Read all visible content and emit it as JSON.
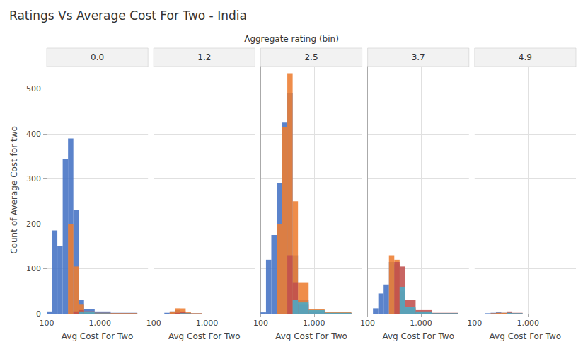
{
  "title": "Ratings Vs Average Cost For Two - India",
  "subtitle": "Aggregate rating (bin)",
  "chart_data": [
    {
      "type": "histogram",
      "title": "0.0",
      "xlabel": "Avg Cost For Two",
      "ylabel": "Count of Average Cost for two",
      "bins": [
        100,
        125.89254117941675,
        158.48931924611142,
        199.52623149688807,
        251.18864315095823,
        316.22776601683796,
        398.1071705534973,
        501.18723362727246,
        794.3282347242822,
        1584.893192461114,
        5011.872336272725
      ],
      "series": [
        {
          "color": "#4472C4",
          "values": [
            5,
            185,
            150,
            345,
            390,
            230,
            30,
            10,
            5,
            2
          ]
        },
        {
          "color": "#ED7D31",
          "values": [
            0,
            0,
            0,
            0,
            200,
            105,
            20,
            5,
            2,
            1
          ]
        },
        {
          "color": "#C0504D",
          "values": [
            0,
            0,
            0,
            0,
            0,
            5,
            8,
            2,
            1,
            0
          ]
        },
        {
          "color": "#4BACC6",
          "values": [
            0,
            0,
            0,
            0,
            0,
            0,
            5,
            3,
            1,
            0
          ]
        }
      ],
      "log": "x",
      "xlim": [
        100,
        7943.282347242822
      ],
      "xticks": [
        100,
        {
          "value": 1000,
          "label": "1,000"
        }
      ],
      "ylim": [
        0,
        550
      ],
      "yticks": [
        0,
        100,
        200,
        300,
        400,
        500
      ],
      "grid": true
    },
    {
      "type": "histogram",
      "title": "1.2",
      "xlabel": "Avg Cost For Two",
      "bins": [
        100,
        125.89254117941675,
        158.48931924611142,
        199.52623149688807,
        251.18864315095823,
        316.22776601683796,
        398.1071705534973,
        501.18723362727246,
        794.3282347242822,
        1584.893192461114,
        5011.872336272725
      ],
      "series": [
        {
          "color": "#4472C4",
          "values": [
            0,
            0,
            2,
            5,
            8,
            5,
            2,
            1,
            0,
            0
          ]
        },
        {
          "color": "#ED7D31",
          "values": [
            0,
            0,
            0,
            5,
            12,
            12,
            3,
            1,
            0,
            0
          ]
        },
        {
          "color": "#C0504D",
          "values": [
            0,
            0,
            0,
            0,
            2,
            3,
            1,
            0,
            0,
            0
          ]
        },
        {
          "color": "#4BACC6",
          "values": [
            0,
            0,
            0,
            0,
            0,
            1,
            1,
            0,
            0,
            0
          ]
        }
      ],
      "log": "x",
      "xlim": [
        100,
        7943.282347242822
      ],
      "xticks": [
        100,
        {
          "value": 1000,
          "label": "1,000"
        }
      ],
      "ylim": [
        0,
        550
      ],
      "yticks": [
        0,
        100,
        200,
        300,
        400,
        500
      ],
      "grid": true,
      "tick_labels": "x"
    },
    {
      "type": "histogram",
      "title": "2.5",
      "xlabel": "Avg Cost For Two",
      "bins": [
        100,
        125.89254117941675,
        158.48931924611142,
        199.52623149688807,
        251.18864315095823,
        316.22776601683796,
        398.1071705534973,
        501.18723362727246,
        794.3282347242822,
        1584.893192461114,
        5011.872336272725
      ],
      "series": [
        {
          "color": "#4472C4",
          "values": [
            3,
            120,
            175,
            290,
            425,
            490,
            130,
            30,
            8,
            2
          ]
        },
        {
          "color": "#ED7D31",
          "values": [
            0,
            0,
            0,
            200,
            415,
            535,
            250,
            70,
            10,
            3
          ]
        },
        {
          "color": "#C0504D",
          "values": [
            0,
            0,
            0,
            0,
            0,
            130,
            70,
            20,
            5,
            1
          ]
        },
        {
          "color": "#4BACC6",
          "values": [
            0,
            0,
            0,
            0,
            0,
            0,
            30,
            25,
            8,
            2
          ]
        }
      ],
      "log": "x",
      "xlim": [
        100,
        7943.282347242822
      ],
      "xticks": [
        100,
        {
          "value": 1000,
          "label": "1,000"
        }
      ],
      "ylim": [
        0,
        550
      ],
      "yticks": [
        0,
        100,
        200,
        300,
        400,
        500
      ],
      "grid": true,
      "tick_labels": "x"
    },
    {
      "type": "histogram",
      "title": "3.7",
      "xlabel": "Avg Cost For Two",
      "bins": [
        100,
        125.89254117941675,
        158.48931924611142,
        199.52623149688807,
        251.18864315095823,
        316.22776601683796,
        398.1071705534973,
        501.18723362727246,
        794.3282347242822,
        1584.893192461114,
        5011.872336272725
      ],
      "series": [
        {
          "color": "#4472C4",
          "values": [
            0,
            12,
            45,
            65,
            115,
            110,
            25,
            8,
            2,
            1
          ]
        },
        {
          "color": "#ED7D31",
          "values": [
            0,
            0,
            0,
            0,
            130,
            120,
            50,
            12,
            3,
            1
          ]
        },
        {
          "color": "#C0504D",
          "values": [
            0,
            0,
            0,
            0,
            0,
            115,
            105,
            30,
            8,
            2
          ]
        },
        {
          "color": "#4BACC6",
          "values": [
            0,
            0,
            0,
            0,
            0,
            0,
            60,
            15,
            5,
            1
          ]
        }
      ],
      "log": "x",
      "xlim": [
        100,
        7943.282347242822
      ],
      "xticks": [
        100,
        {
          "value": 1000,
          "label": "1,000"
        }
      ],
      "ylim": [
        0,
        550
      ],
      "yticks": [
        0,
        100,
        200,
        300,
        400,
        500
      ],
      "grid": true,
      "tick_labels": "x"
    },
    {
      "type": "histogram",
      "title": "4.9",
      "xlabel": "Avg Cost For Two",
      "bins": [
        100,
        125.89254117941675,
        158.48931924611142,
        199.52623149688807,
        251.18864315095823,
        316.22776601683796,
        398.1071705534973,
        501.18723362727246,
        794.3282347242822,
        1584.893192461114,
        5011.872336272725
      ],
      "series": [
        {
          "color": "#4472C4",
          "values": [
            0,
            0,
            1,
            2,
            3,
            2,
            1,
            0,
            0,
            0
          ]
        },
        {
          "color": "#ED7D31",
          "values": [
            0,
            0,
            0,
            1,
            2,
            2,
            1,
            0,
            0,
            0
          ]
        },
        {
          "color": "#C0504D",
          "values": [
            0,
            0,
            0,
            0,
            0,
            0,
            5,
            2,
            0,
            0
          ]
        },
        {
          "color": "#4BACC6",
          "values": [
            0,
            0,
            0,
            0,
            0,
            0,
            2,
            1,
            0,
            0
          ]
        }
      ],
      "log": "x",
      "xlim": [
        100,
        7943.282347242822
      ],
      "xticks": [
        100,
        {
          "value": 1000,
          "label": "1,000"
        }
      ],
      "ylim": [
        0,
        550
      ],
      "yticks": [
        0,
        100,
        200,
        300,
        400,
        500
      ],
      "grid": true,
      "tick_labels": "x"
    }
  ]
}
